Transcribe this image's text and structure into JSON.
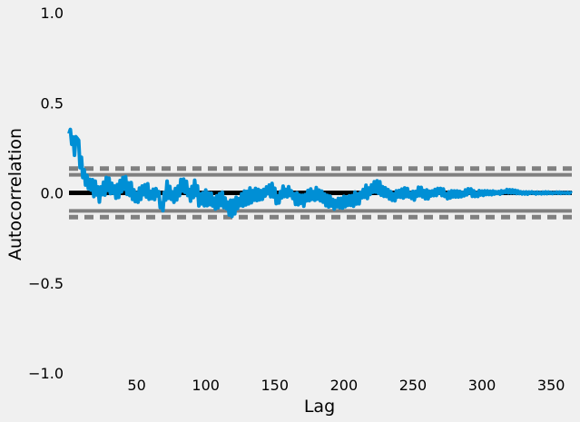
{
  "chart_data": {
    "type": "line",
    "title": "",
    "xlabel": "Lag",
    "ylabel": "Autocorrelation",
    "xlim": [
      1,
      365
    ],
    "ylim": [
      -1.0,
      1.0
    ],
    "x_ticks": [
      50,
      100,
      150,
      200,
      250,
      300,
      350
    ],
    "x_tick_labels": [
      "50",
      "100",
      "150",
      "200",
      "250",
      "300",
      "350"
    ],
    "y_ticks": [
      1.0,
      0.5,
      0.0,
      -0.5,
      -1.0
    ],
    "y_tick_labels": [
      "1.0",
      "0.5",
      "0.0",
      "−0.5",
      "−1.0"
    ],
    "grid": false,
    "reference_lines": [
      {
        "y": 0.0,
        "style": "solid",
        "color": "#000000"
      },
      {
        "y": 0.1,
        "style": "solid",
        "color": "#808080"
      },
      {
        "y": -0.1,
        "style": "solid",
        "color": "#808080"
      },
      {
        "y": 0.135,
        "style": "dashed",
        "color": "#808080"
      },
      {
        "y": -0.135,
        "style": "dashed",
        "color": "#808080"
      }
    ],
    "series": [
      {
        "color": "#008fd5",
        "anchors_x": [
          1,
          3,
          5,
          7,
          9,
          12,
          15,
          18,
          20,
          23,
          26,
          30,
          35,
          40,
          45,
          50,
          55,
          60,
          65,
          68,
          72,
          76,
          80,
          85,
          88,
          92,
          96,
          100,
          104,
          108,
          112,
          116,
          120,
          124,
          128,
          132,
          136,
          140,
          144,
          148,
          152,
          156,
          160,
          165,
          170,
          175,
          180,
          185,
          190,
          195,
          200,
          205,
          210,
          215,
          220,
          225,
          230,
          235,
          240,
          245,
          250,
          255,
          260,
          265,
          270,
          275,
          280,
          285,
          290,
          295,
          300,
          310,
          320,
          330,
          340,
          350,
          360,
          365
        ],
        "anchors_y": [
          0.36,
          0.3,
          0.24,
          0.32,
          0.18,
          0.1,
          0.06,
          0.03,
          0.02,
          -0.01,
          0.03,
          0.05,
          0.0,
          0.06,
          0.02,
          -0.02,
          0.02,
          -0.01,
          0.01,
          -0.08,
          0.02,
          -0.03,
          0.01,
          0.05,
          -0.02,
          0.03,
          -0.04,
          -0.03,
          -0.05,
          -0.06,
          -0.04,
          -0.08,
          -0.09,
          -0.05,
          -0.03,
          -0.02,
          0.0,
          -0.02,
          0.01,
          0.02,
          -0.04,
          0.0,
          0.01,
          -0.03,
          -0.04,
          -0.02,
          -0.01,
          -0.03,
          -0.05,
          -0.06,
          -0.05,
          -0.04,
          -0.03,
          0.0,
          0.02,
          0.03,
          0.0,
          -0.02,
          -0.01,
          0.0,
          -0.02,
          0.01,
          -0.01,
          0.0,
          0.01,
          -0.02,
          0.0,
          -0.01,
          0.01,
          -0.01,
          0.0,
          0.0,
          0.01,
          0.0,
          0.0,
          0.0,
          0.0,
          0.0
        ],
        "noise_amplitude": [
          0.04,
          0.04,
          0.04,
          0.04,
          0.05,
          0.05,
          0.05,
          0.05,
          0.05,
          0.05,
          0.05,
          0.05,
          0.05,
          0.05,
          0.05,
          0.05,
          0.05,
          0.05,
          0.05,
          0.05,
          0.05,
          0.05,
          0.05,
          0.05,
          0.05,
          0.05,
          0.05,
          0.05,
          0.05,
          0.05,
          0.05,
          0.05,
          0.05,
          0.05,
          0.05,
          0.05,
          0.05,
          0.04,
          0.04,
          0.04,
          0.04,
          0.04,
          0.04,
          0.04,
          0.04,
          0.04,
          0.04,
          0.04,
          0.04,
          0.04,
          0.04,
          0.04,
          0.04,
          0.04,
          0.04,
          0.04,
          0.03,
          0.03,
          0.03,
          0.03,
          0.03,
          0.03,
          0.03,
          0.03,
          0.025,
          0.025,
          0.025,
          0.02,
          0.02,
          0.02,
          0.015,
          0.012,
          0.01,
          0.008,
          0.006,
          0.005,
          0.004,
          0.004
        ]
      }
    ]
  }
}
